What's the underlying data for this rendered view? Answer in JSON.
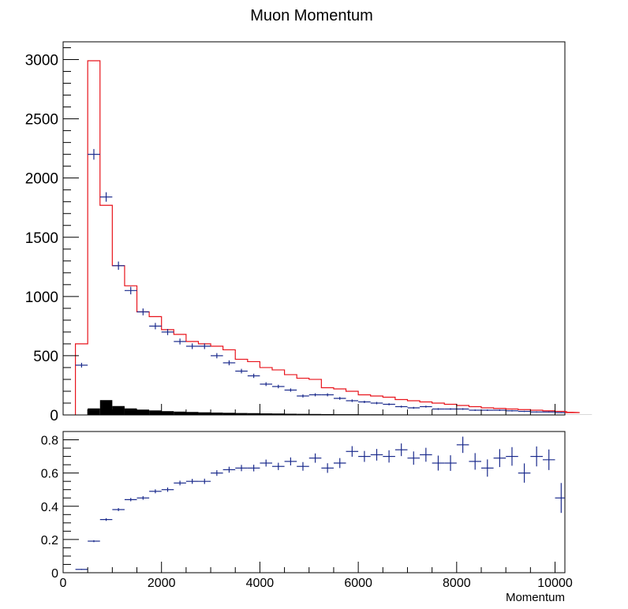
{
  "chart_data": [
    {
      "type": "histogram",
      "title": "Muon Momentum",
      "xlabel": "",
      "ylabel": "",
      "xlim": [
        0,
        10200
      ],
      "ylim": [
        0,
        3150
      ],
      "grid": false,
      "bin_width": 250,
      "y_ticks": [
        0,
        500,
        1000,
        1500,
        2000,
        2500,
        3000
      ],
      "y_tick_labels": [
        "0",
        "500",
        "1000",
        "1500",
        "2000",
        "2500",
        "3000"
      ],
      "series": [
        {
          "name": "",
          "style": "step",
          "color": "#e8141c",
          "x_start": 250,
          "values": [
            600,
            2990,
            1770,
            1260,
            1090,
            870,
            830,
            720,
            680,
            620,
            600,
            580,
            550,
            470,
            450,
            400,
            380,
            340,
            310,
            300,
            230,
            220,
            200,
            170,
            160,
            150,
            130,
            120,
            110,
            100,
            90,
            80,
            70,
            60,
            55,
            50,
            45,
            40,
            35,
            30,
            25,
            20
          ]
        },
        {
          "name": "",
          "style": "points",
          "color": "#1a2a8c",
          "x_start": 250,
          "values": [
            420,
            2200,
            1840,
            1260,
            1050,
            870,
            750,
            700,
            620,
            580,
            580,
            500,
            440,
            370,
            330,
            260,
            240,
            210,
            160,
            170,
            170,
            140,
            120,
            110,
            100,
            90,
            70,
            60,
            70,
            50,
            50,
            50,
            40,
            40,
            40,
            35,
            30,
            25,
            25,
            20,
            15,
            12
          ],
          "errors": [
            20,
            45,
            40,
            35,
            32,
            29,
            27,
            26,
            25,
            24,
            24,
            22,
            21,
            19,
            18,
            16,
            15,
            14,
            13,
            13,
            13,
            12,
            11,
            10,
            10,
            9,
            8,
            8,
            8,
            7,
            7,
            7,
            6,
            6,
            6,
            6,
            5,
            5,
            5,
            4,
            4,
            3
          ]
        },
        {
          "name": "",
          "style": "filled",
          "color": "#000000",
          "x_start": 250,
          "values": [
            0,
            55,
            125,
            75,
            55,
            45,
            38,
            32,
            28,
            25,
            22,
            20,
            18,
            16,
            15,
            13,
            12,
            10,
            9,
            8,
            7,
            6,
            6,
            5,
            5,
            4,
            4,
            3,
            3,
            3,
            2,
            2,
            2,
            2,
            2,
            1,
            1,
            1,
            1,
            1,
            1,
            1
          ]
        }
      ]
    },
    {
      "type": "scatter",
      "title": "",
      "xlabel": "Momentum",
      "ylabel": "",
      "xlim": [
        0,
        10200
      ],
      "ylim": [
        0,
        0.85
      ],
      "grid": false,
      "x_ticks": [
        0,
        2000,
        4000,
        6000,
        8000,
        10000
      ],
      "x_tick_labels": [
        "0",
        "2000",
        "4000",
        "6000",
        "8000",
        "10000"
      ],
      "y_ticks": [
        0,
        0.2,
        0.4,
        0.6,
        0.8
      ],
      "y_tick_labels": [
        "0",
        "0.2",
        "0.4",
        "0.6",
        "0.8"
      ],
      "series": [
        {
          "name": "",
          "color": "#1a2a8c",
          "x_start": 250,
          "bin_width": 250,
          "values": [
            0.02,
            0.19,
            0.32,
            0.38,
            0.44,
            0.45,
            0.49,
            0.5,
            0.54,
            0.55,
            0.55,
            0.6,
            0.62,
            0.63,
            0.63,
            0.66,
            0.64,
            0.67,
            0.64,
            0.69,
            0.63,
            0.66,
            0.73,
            0.7,
            0.71,
            0.7,
            0.74,
            0.69,
            0.71,
            0.66,
            0.66,
            0.77,
            0.67,
            0.63,
            0.69,
            0.7,
            0.6,
            0.7,
            0.68,
            0.45
          ],
          "errors": [
            0.003,
            0.006,
            0.008,
            0.009,
            0.01,
            0.011,
            0.012,
            0.013,
            0.014,
            0.015,
            0.016,
            0.017,
            0.018,
            0.019,
            0.02,
            0.021,
            0.022,
            0.024,
            0.026,
            0.028,
            0.029,
            0.03,
            0.032,
            0.033,
            0.035,
            0.037,
            0.038,
            0.04,
            0.042,
            0.045,
            0.047,
            0.049,
            0.05,
            0.052,
            0.054,
            0.056,
            0.058,
            0.06,
            0.062,
            0.09
          ]
        }
      ]
    }
  ]
}
